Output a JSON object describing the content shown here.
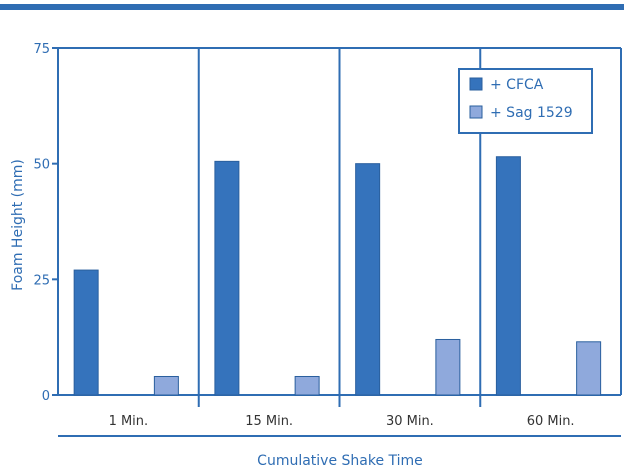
{
  "colors": {
    "axis": "#2f6db3",
    "cfca": "#3573bc",
    "sag": "#8fa9dc",
    "bar_stroke": "#2a5f9e",
    "category_text": "#333333"
  },
  "chart_data": {
    "type": "bar",
    "title": "",
    "xlabel": "Cumulative Shake Time",
    "ylabel": "Foam Height (mm)",
    "ylim": [
      0,
      75
    ],
    "yticks": [
      "0",
      "25",
      "50",
      "75"
    ],
    "categories": [
      "1 Min.",
      "15 Min.",
      "30 Min.",
      "60 Min."
    ],
    "series": [
      {
        "name": "+ CFCA",
        "values": [
          27,
          50.5,
          50,
          51.5
        ]
      },
      {
        "name": "+ Sag 1529",
        "values": [
          4,
          4,
          12,
          11.5
        ]
      }
    ],
    "grid": false,
    "legend_position": "top-right"
  }
}
